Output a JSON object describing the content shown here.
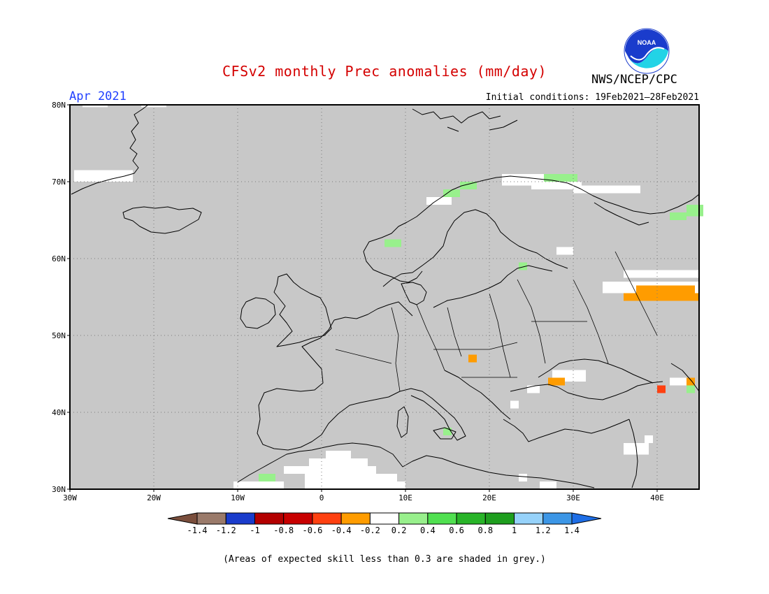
{
  "header": {
    "title": "CFSv2 monthly Prec anomalies (mm/day)",
    "agency": "NWS/NCEP/CPC",
    "logo_text": "NOAA",
    "month": "Apr 2021",
    "initial_conditions": "Initial conditions: 19Feb2021–28Feb2021"
  },
  "footnote": "(Areas of expected skill less than 0.3 are shaded in grey.)",
  "colors": {
    "skill_mask_grey": "#c8c8c8",
    "neutral_white": "#ffffff",
    "coastline": "#000000",
    "logo_blue": "#1a3ccc",
    "logo_cyan": "#22d3e6"
  },
  "chart_data": {
    "type": "heatmap",
    "map": {
      "lon_range": [
        -30,
        45
      ],
      "lat_range": [
        30,
        80
      ],
      "lon_ticks": [
        {
          "value": -30,
          "label": "30W"
        },
        {
          "value": -20,
          "label": "20W"
        },
        {
          "value": -10,
          "label": "10W"
        },
        {
          "value": 0,
          "label": "0"
        },
        {
          "value": 10,
          "label": "10E"
        },
        {
          "value": 20,
          "label": "20E"
        },
        {
          "value": 30,
          "label": "30E"
        },
        {
          "value": 40,
          "label": "40E"
        }
      ],
      "lat_ticks": [
        {
          "value": 30,
          "label": "30N"
        },
        {
          "value": 40,
          "label": "40N"
        },
        {
          "value": 50,
          "label": "50N"
        },
        {
          "value": 60,
          "label": "60N"
        },
        {
          "value": 70,
          "label": "70N"
        },
        {
          "value": 80,
          "label": "80N"
        }
      ],
      "grid": "dotted"
    },
    "colorbar": {
      "ticks": [
        "-1.4",
        "-1.2",
        "-1",
        "-0.8",
        "-0.6",
        "-0.4",
        "-0.2",
        "0.2",
        "0.4",
        "0.6",
        "0.8",
        "1",
        "1.2",
        "1.4"
      ],
      "colors": [
        "#7a4e3c",
        "#9a7a6a",
        "#1a3ccc",
        "#b30000",
        "#c80000",
        "#ff4010",
        "#ff9c00",
        "#ffffff",
        "#98f08c",
        "#50e050",
        "#28b428",
        "#1e9e1e",
        "#96d2fa",
        "#3c96e6",
        "#1e6ee6"
      ]
    },
    "anomaly_cells": [
      {
        "lon": -28.5,
        "lat": 80.5,
        "w": 3,
        "h": 0.8,
        "color": "#ffffff"
      },
      {
        "lon": -21.5,
        "lat": 80.5,
        "w": 3,
        "h": 0.8,
        "color": "#ffffff"
      },
      {
        "lon": -29.5,
        "lat": 71.5,
        "w": 7,
        "h": 1.5,
        "color": "#ffffff"
      },
      {
        "lon": 16.5,
        "lat": 70.0,
        "w": 2,
        "h": 1,
        "color": "#98f08c"
      },
      {
        "lon": 14.5,
        "lat": 69.0,
        "w": 2,
        "h": 1,
        "color": "#98f08c"
      },
      {
        "lon": 12.5,
        "lat": 68.0,
        "w": 3,
        "h": 1,
        "color": "#ffffff"
      },
      {
        "lon": 21.5,
        "lat": 71.0,
        "w": 5,
        "h": 1.5,
        "color": "#ffffff"
      },
      {
        "lon": 26.5,
        "lat": 71.0,
        "w": 2,
        "h": 1,
        "color": "#98f08c"
      },
      {
        "lon": 28.5,
        "lat": 71.0,
        "w": 2,
        "h": 1,
        "color": "#98f08c"
      },
      {
        "lon": 25.0,
        "lat": 70.0,
        "w": 6,
        "h": 1,
        "color": "#ffffff"
      },
      {
        "lon": 30.0,
        "lat": 69.5,
        "w": 8,
        "h": 1,
        "color": "#ffffff"
      },
      {
        "lon": 43.5,
        "lat": 67.0,
        "w": 2,
        "h": 1.5,
        "color": "#98f08c"
      },
      {
        "lon": 41.5,
        "lat": 66.0,
        "w": 2,
        "h": 1,
        "color": "#98f08c"
      },
      {
        "lon": 7.5,
        "lat": 62.5,
        "w": 2,
        "h": 1,
        "color": "#98f08c"
      },
      {
        "lon": 23.5,
        "lat": 59.5,
        "w": 1,
        "h": 1,
        "color": "#98f08c"
      },
      {
        "lon": 28.0,
        "lat": 61.5,
        "w": 2,
        "h": 1,
        "color": "#ffffff"
      },
      {
        "lon": 36.0,
        "lat": 58.5,
        "w": 10,
        "h": 1,
        "color": "#ffffff"
      },
      {
        "lon": 33.5,
        "lat": 57.0,
        "w": 11.5,
        "h": 1.5,
        "color": "#ffffff"
      },
      {
        "lon": 37.5,
        "lat": 56.5,
        "w": 7,
        "h": 1,
        "color": "#ff9c00"
      },
      {
        "lon": 36.0,
        "lat": 55.5,
        "w": 9,
        "h": 1,
        "color": "#ff9c00"
      },
      {
        "lon": 17.5,
        "lat": 47.5,
        "w": 1,
        "h": 1,
        "color": "#ff9c00"
      },
      {
        "lon": 27.5,
        "lat": 45.5,
        "w": 4,
        "h": 1.5,
        "color": "#ffffff"
      },
      {
        "lon": 27.0,
        "lat": 44.5,
        "w": 2,
        "h": 1,
        "color": "#ff9c00"
      },
      {
        "lon": 24.5,
        "lat": 43.5,
        "w": 1.5,
        "h": 1,
        "color": "#ffffff"
      },
      {
        "lon": 22.5,
        "lat": 41.5,
        "w": 1,
        "h": 1,
        "color": "#ffffff"
      },
      {
        "lon": 40.0,
        "lat": 43.5,
        "w": 1,
        "h": 1,
        "color": "#ff4010"
      },
      {
        "lon": 41.5,
        "lat": 44.5,
        "w": 2,
        "h": 1,
        "color": "#ffffff"
      },
      {
        "lon": 43.5,
        "lat": 44.5,
        "w": 1,
        "h": 1,
        "color": "#ff9c00"
      },
      {
        "lon": 43.5,
        "lat": 43.5,
        "w": 1,
        "h": 1,
        "color": "#98f08c"
      },
      {
        "lon": 14.5,
        "lat": 38.0,
        "w": 1,
        "h": 1,
        "color": "#98f08c"
      },
      {
        "lon": 36.0,
        "lat": 36.0,
        "w": 3,
        "h": 1.5,
        "color": "#ffffff"
      },
      {
        "lon": 38.5,
        "lat": 37.0,
        "w": 1,
        "h": 1,
        "color": "#ffffff"
      },
      {
        "lon": 0.5,
        "lat": 35.0,
        "w": 3,
        "h": 1,
        "color": "#ffffff"
      },
      {
        "lon": -1.5,
        "lat": 34.0,
        "w": 7,
        "h": 1,
        "color": "#ffffff"
      },
      {
        "lon": -2.5,
        "lat": 33.0,
        "w": 9,
        "h": 1,
        "color": "#ffffff"
      },
      {
        "lon": -2.0,
        "lat": 32.0,
        "w": 11,
        "h": 1,
        "color": "#ffffff"
      },
      {
        "lon": -2.0,
        "lat": 31.0,
        "w": 12,
        "h": 1,
        "color": "#ffffff"
      },
      {
        "lon": -10.5,
        "lat": 31.0,
        "w": 6,
        "h": 1,
        "color": "#ffffff"
      },
      {
        "lon": -7.5,
        "lat": 32.0,
        "w": 2,
        "h": 1,
        "color": "#98f08c"
      },
      {
        "lon": -4.5,
        "lat": 33.0,
        "w": 2,
        "h": 1,
        "color": "#ffffff"
      },
      {
        "lon": 23.5,
        "lat": 32.0,
        "w": 1,
        "h": 1,
        "color": "#ffffff"
      },
      {
        "lon": 26.0,
        "lat": 31.0,
        "w": 2,
        "h": 1,
        "color": "#ffffff"
      }
    ]
  }
}
